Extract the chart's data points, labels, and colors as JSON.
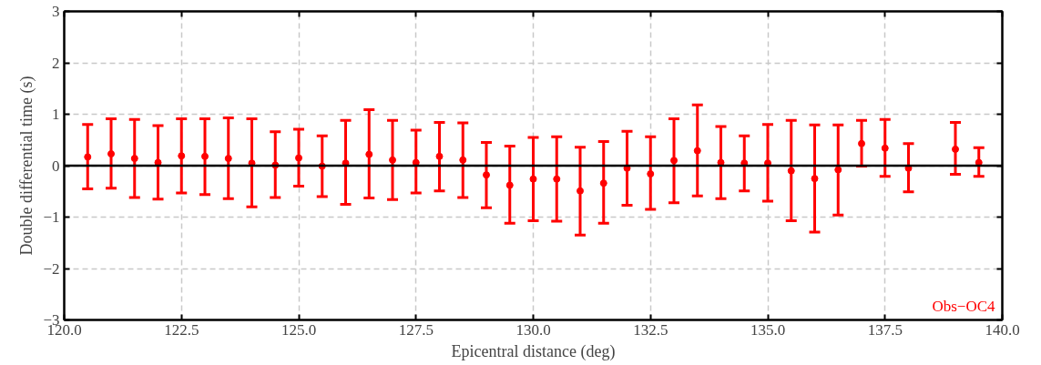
{
  "chart_data": {
    "type": "scatter",
    "xlabel": "Epicentral distance (deg)",
    "ylabel": "Double differential time (s)",
    "annotations": [
      "Obs−OC4"
    ],
    "xlim": [
      120,
      140
    ],
    "ylim": [
      -3,
      3
    ],
    "xticks": [
      {
        "value": 120,
        "label": "120.0"
      },
      {
        "value": 122.5,
        "label": "122.5"
      },
      {
        "value": 125,
        "label": "125.0"
      },
      {
        "value": 127.5,
        "label": "127.5"
      },
      {
        "value": 130,
        "label": "130.0"
      },
      {
        "value": 132.5,
        "label": "132.5"
      },
      {
        "value": 135,
        "label": "135.0"
      },
      {
        "value": 137.5,
        "label": "137.5"
      },
      {
        "value": 140,
        "label": "140.0"
      }
    ],
    "yticks": [
      {
        "value": -3,
        "label": "−3"
      },
      {
        "value": -2,
        "label": "−2"
      },
      {
        "value": -1,
        "label": "−1"
      },
      0,
      1,
      2,
      3
    ],
    "grid": true,
    "marker": "circle",
    "ref_lines": [
      {
        "axis": "y",
        "value": 0,
        "label": null,
        "color": "#000000"
      }
    ],
    "series": [
      {
        "color": "#ff0000",
        "x": [
          120.5,
          121,
          121.5,
          122,
          122.5,
          123,
          123.5,
          124,
          124.5,
          125,
          125.5,
          126,
          126.5,
          127,
          127.5,
          128,
          128.5,
          129,
          129.5,
          130,
          130.5,
          131,
          131.5,
          132,
          132.5,
          133,
          133.5,
          134,
          134.5,
          135,
          135.5,
          136,
          136.5,
          137,
          137.5,
          138,
          139,
          139.5
        ],
        "values": [
          0.17,
          0.23,
          0.14,
          0.06,
          0.19,
          0.18,
          0.14,
          0.05,
          0.01,
          0.15,
          -0.01,
          0.05,
          0.22,
          0.11,
          0.06,
          0.18,
          0.11,
          -0.18,
          -0.38,
          -0.26,
          -0.26,
          -0.49,
          -0.34,
          -0.05,
          -0.16,
          0.1,
          0.29,
          0.06,
          0.05,
          0.05,
          -0.1,
          -0.25,
          -0.08,
          0.43,
          0.34,
          -0.05,
          0.32,
          0.06
        ],
        "errors": [
          [
            -0.45,
            0.8
          ],
          [
            -0.44,
            0.91
          ],
          [
            -0.62,
            0.9
          ],
          [
            -0.65,
            0.78
          ],
          [
            -0.53,
            0.91
          ],
          [
            -0.56,
            0.91
          ],
          [
            -0.64,
            0.93
          ],
          [
            -0.8,
            0.91
          ],
          [
            -0.62,
            0.66
          ],
          [
            -0.4,
            0.71
          ],
          [
            -0.6,
            0.58
          ],
          [
            -0.75,
            0.88
          ],
          [
            -0.63,
            1.09
          ],
          [
            -0.66,
            0.88
          ],
          [
            -0.53,
            0.69
          ],
          [
            -0.49,
            0.84
          ],
          [
            -0.62,
            0.83
          ],
          [
            -0.82,
            0.45
          ],
          [
            -1.12,
            0.38
          ],
          [
            -1.07,
            0.55
          ],
          [
            -1.08,
            0.56
          ],
          [
            -1.35,
            0.36
          ],
          [
            -1.12,
            0.47
          ],
          [
            -0.77,
            0.67
          ],
          [
            -0.85,
            0.56
          ],
          [
            -0.72,
            0.91
          ],
          [
            -0.59,
            1.18
          ],
          [
            -0.64,
            0.76
          ],
          [
            -0.49,
            0.58
          ],
          [
            -0.69,
            0.8
          ],
          [
            -1.07,
            0.88
          ],
          [
            -1.29,
            0.79
          ],
          [
            -0.96,
            0.79
          ],
          [
            -0.01,
            0.88
          ],
          [
            -0.21,
            0.9
          ],
          [
            -0.51,
            0.43
          ],
          [
            -0.17,
            0.84
          ],
          [
            -0.21,
            0.35
          ]
        ]
      }
    ]
  }
}
